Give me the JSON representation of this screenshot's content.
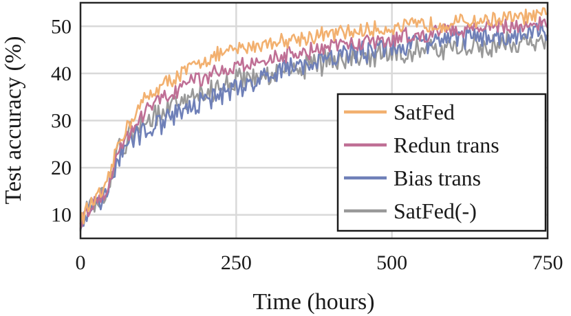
{
  "chart_data": {
    "type": "line",
    "title": "",
    "xlabel": "Time (hours)",
    "ylabel": "Test accuracy (%)",
    "xlim": [
      0,
      750
    ],
    "ylim": [
      5,
      55
    ],
    "xticks": [
      0,
      250,
      500,
      750
    ],
    "xtick_labels": [
      "0",
      "250",
      "500",
      "750"
    ],
    "yticks": [
      10,
      20,
      30,
      40,
      50
    ],
    "ytick_labels": [
      "10",
      "20",
      "30",
      "40",
      "50"
    ],
    "grid": true,
    "legend_position": "lower-right",
    "x": [
      0,
      10,
      20,
      30,
      40,
      50,
      60,
      80,
      100,
      125,
      150,
      175,
      200,
      250,
      300,
      350,
      400,
      450,
      500,
      550,
      600,
      650,
      700,
      750
    ],
    "series": [
      {
        "name": "SatFed",
        "color": "#f2b06f",
        "values": [
          9,
          11,
          13,
          14,
          15,
          20,
          25,
          30,
          34,
          37,
          39,
          41,
          43,
          45,
          46.5,
          47.5,
          48.3,
          49,
          49.7,
          50.3,
          50.8,
          51.3,
          51.8,
          52.2
        ],
        "noise": 1.5
      },
      {
        "name": "Redun trans",
        "color": "#bf6f95",
        "values": [
          8.5,
          10.5,
          12.5,
          13.5,
          14.5,
          19,
          24,
          28,
          31,
          34,
          36,
          38,
          39.5,
          41.5,
          43,
          44.5,
          45.5,
          46.5,
          47.5,
          48.3,
          49,
          49.7,
          50.3,
          50.8
        ],
        "noise": 1.5
      },
      {
        "name": "Bias trans",
        "color": "#6f80b8",
        "values": [
          8,
          10,
          12,
          13,
          14,
          18,
          22,
          25.5,
          27.5,
          29,
          31,
          32.5,
          34,
          37,
          39.5,
          41.5,
          43,
          44.5,
          45.5,
          46.5,
          47.3,
          48,
          48.5,
          49
        ],
        "noise": 2.0
      },
      {
        "name": "SatFed(-)",
        "color": "#999999",
        "values": [
          8.5,
          11,
          13,
          14,
          15,
          18,
          23,
          27,
          29,
          31,
          33,
          34.5,
          36,
          38.5,
          40,
          41.5,
          42.5,
          43.5,
          44.5,
          45,
          45.5,
          46,
          46.5,
          47
        ],
        "noise": 2.3
      }
    ]
  }
}
